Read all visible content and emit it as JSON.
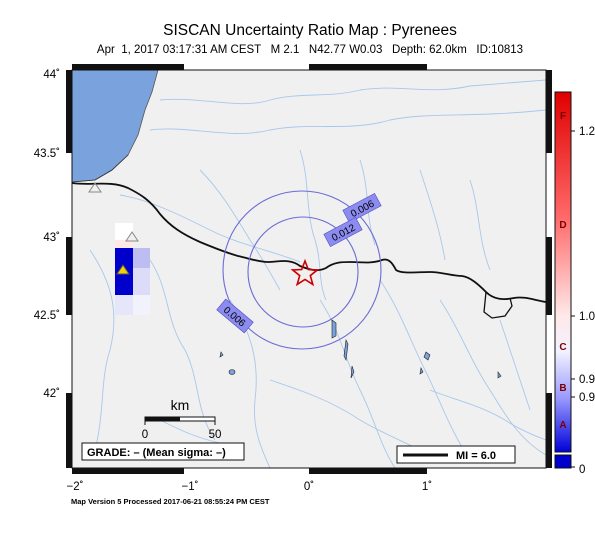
{
  "header": {
    "title": "SISCAN Uncertainty Ratio Map : Pyrenees",
    "subtitle": "Apr  1, 2017 03:17:31 AM CEST   M 2.1   N42.77 W0.03   Depth: 62.0km   ID:10813"
  },
  "map": {
    "lat_labels": [
      "44˚",
      "43.5˚",
      "43˚",
      "42.5˚",
      "42˚"
    ],
    "lon_labels": [
      "−2˚",
      "−1˚",
      "0˚",
      "1˚"
    ],
    "contours": [
      {
        "label": "0.006"
      },
      {
        "label": "0.012"
      },
      {
        "label": "0.006"
      }
    ],
    "scale": {
      "title": "km",
      "start": "0",
      "end": "50"
    },
    "grade_box": "GRADE: – (Mean sigma: –)",
    "mi_legend": "MI = 6.0",
    "epicenter": {
      "lat": 42.77,
      "lon": -0.03
    }
  },
  "colorbar": {
    "ticks": [
      "1.2",
      "1.0",
      "0.9",
      "0.9",
      "0"
    ],
    "letters": [
      "F",
      "D",
      "C",
      "B",
      "A"
    ]
  },
  "footer": "Map Version 5 Processed 2017-06-21 08:55:24 PM CEST",
  "colors": {
    "sea": "#7aa2dd",
    "land": "#f0f0f0",
    "rivers": "#9fc3e8",
    "contour": "#6b6bd6",
    "epicenter": "#cc0000"
  }
}
